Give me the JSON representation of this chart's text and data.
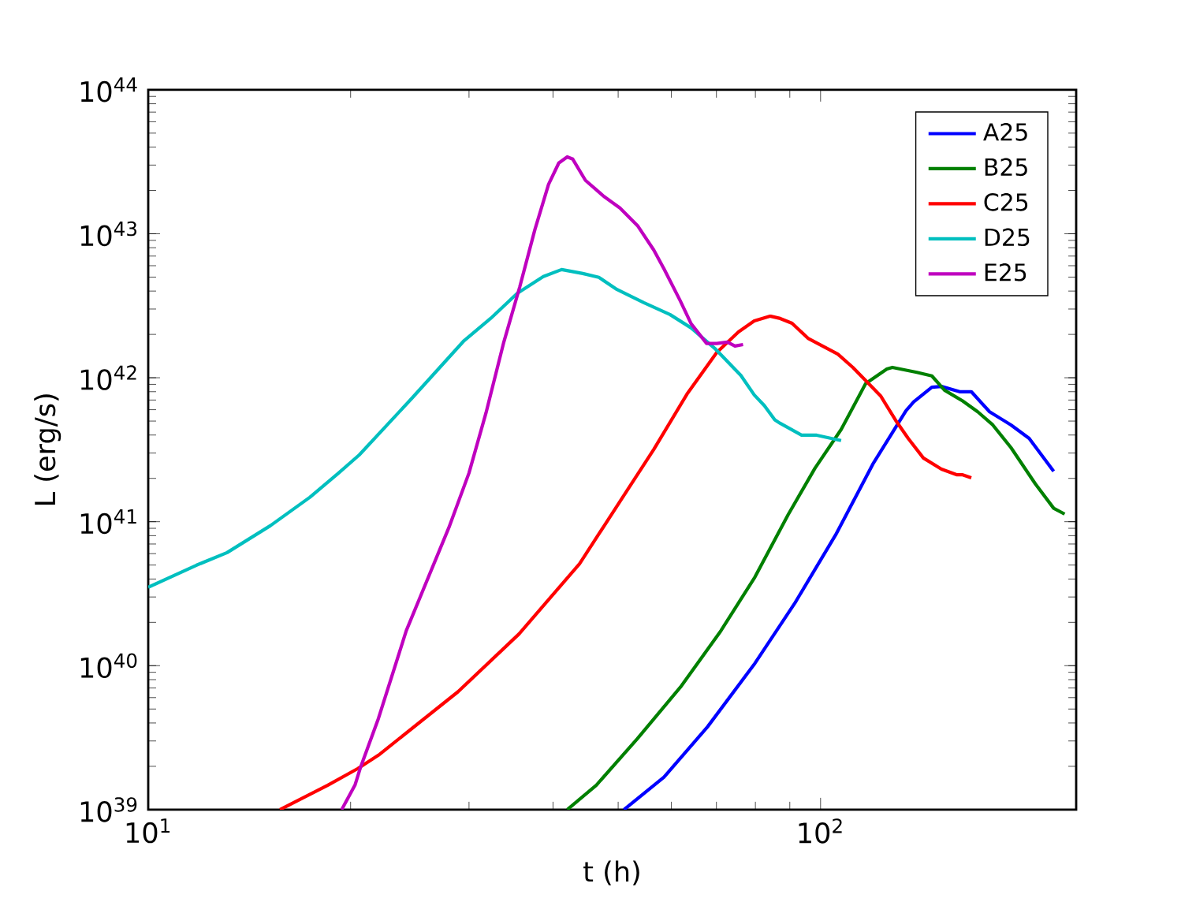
{
  "chart_data": {
    "type": "line",
    "xlabel": "t (h)",
    "ylabel": "L (erg/s)",
    "log": "xy",
    "legend": "top right",
    "grid": false,
    "xlim": [
      10,
      240
    ],
    "ylim": [
      1e+39,
      1e+44
    ],
    "xticks": [
      {
        "value": 10,
        "label": "10$^{1}$"
      },
      {
        "value": 100,
        "label": "10$^{2}$"
      }
    ],
    "yticks": [
      {
        "value": 1e+39,
        "label": "10$^{39}$"
      },
      {
        "value": 1e+40,
        "label": "10$^{40}$"
      },
      {
        "value": 1e+41,
        "label": "10$^{41}$"
      },
      {
        "value": 1e+42,
        "label": "10$^{42}$"
      },
      {
        "value": 1e+43,
        "label": "10$^{43}$"
      },
      {
        "value": 1e+44,
        "label": "10$^{44}$"
      }
    ],
    "series": [
      {
        "name": "A25",
        "color": "#0000ff",
        "x": [
          51.0,
          58.5,
          67.9,
          79.9,
          91.7,
          105.3,
          119.6,
          134.0,
          137.6,
          146.4,
          151.3,
          161.0,
          167.6,
          178.4,
          192.0,
          204.3,
          222.2
        ],
        "values": [
          1e+39,
          1.68e+39,
          3.76e+39,
          1.04e+40,
          2.75e+40,
          8.1e+40,
          2.51e+41,
          5.9e+41,
          6.8e+41,
          8.6e+41,
          8.7e+41,
          8e+41,
          8e+41,
          5.8e+41,
          4.7e+41,
          3.79e+41,
          2.24e+41
        ]
      },
      {
        "name": "B25",
        "color": "#008000",
        "x": [
          42.0,
          46.4,
          53.4,
          61.9,
          71.1,
          79.9,
          89.5,
          98.1,
          107.3,
          116.7,
          125.5,
          127.9,
          139.1,
          146.4,
          152.9,
          162.7,
          171.3,
          180.4,
          192.0,
          208.7,
          222.2,
          230.7
        ],
        "values": [
          1e+39,
          1.48e+39,
          3.11e+39,
          7.1e+39,
          1.75e+40,
          4.13e+40,
          1.12e+41,
          2.35e+41,
          4.37e+41,
          9.1e+41,
          1.15e+42,
          1.18e+42,
          1.09e+42,
          1.03e+42,
          8.2e+41,
          6.9e+41,
          5.8e+41,
          4.7e+41,
          3.27e+41,
          1.83e+41,
          1.24e+41,
          1.13e+41
        ]
      },
      {
        "name": "C25",
        "color": "#ff0000",
        "x": [
          15.7,
          18.5,
          20.5,
          22.0,
          28.9,
          35.6,
          43.8,
          50.3,
          56.5,
          63.3,
          70.1,
          75.5,
          79.7,
          84.1,
          87.1,
          90.7,
          95.8,
          106.1,
          111.7,
          122.8,
          129.3,
          135.0,
          142.2,
          151.3,
          159.3,
          162.4,
          167.6
        ],
        "values": [
          1e+39,
          1.48e+39,
          1.93e+39,
          2.39e+39,
          6.6e+39,
          1.66e+40,
          5.1e+40,
          1.38e+41,
          3.18e+41,
          7.7e+41,
          1.5e+42,
          2.08e+42,
          2.48e+42,
          2.68e+42,
          2.58e+42,
          2.39e+42,
          1.88e+42,
          1.46e+42,
          1.18e+42,
          7.5e+41,
          5.07e+41,
          3.79e+41,
          2.77e+41,
          2.32e+41,
          2.12e+41,
          2.12e+41,
          2.02e+41
        ]
      },
      {
        "name": "D25",
        "color": "#00bfbf",
        "x": [
          10,
          11.8,
          13.1,
          15.2,
          17.4,
          19.2,
          20.6,
          24.6,
          29.5,
          32.3,
          35.4,
          38.7,
          41.2,
          44.3,
          46.8,
          49.8,
          54.6,
          59.7,
          64.2,
          69.6,
          76.1,
          79.7,
          82.5,
          85.5,
          87.1,
          93.7,
          98.7,
          107.3
        ],
        "values": [
          3.5e+40,
          4.99e+40,
          6.1e+40,
          9.4e+40,
          1.48e+41,
          2.18e+41,
          2.91e+41,
          7.1e+41,
          1.81e+42,
          2.58e+42,
          3.86e+42,
          5.04e+42,
          5.64e+42,
          5.3e+42,
          4.98e+42,
          4.1e+42,
          3.32e+42,
          2.75e+42,
          2.22e+42,
          1.6e+42,
          1.04e+42,
          7.6e+41,
          6.4e+41,
          5.1e+41,
          4.82e+41,
          3.99e+41,
          3.99e+41,
          3.66e+41
        ]
      },
      {
        "name": "E25",
        "color": "#bf00bf",
        "x": [
          19.4,
          20.3,
          20.7,
          22.0,
          24.2,
          28.0,
          30.0,
          31.8,
          33.8,
          35.7,
          37.6,
          39.4,
          40.8,
          42.0,
          42.8,
          44.7,
          47.6,
          50.3,
          53.5,
          56.5,
          58.5,
          61.8,
          64.2,
          67.7,
          70.1,
          72.7,
          74.6,
          76.7
        ],
        "values": [
          1e+39,
          1.48e+39,
          1.98e+39,
          4.3e+39,
          1.75e+40,
          9.1e+40,
          2.18e+41,
          5.7e+41,
          1.77e+42,
          4.28e+42,
          1.07e+43,
          2.2e+43,
          3.1e+43,
          3.42e+43,
          3.3e+43,
          2.35e+43,
          1.82e+43,
          1.51e+43,
          1.13e+43,
          7.7e+42,
          5.7e+42,
          3.45e+42,
          2.37e+42,
          1.73e+42,
          1.73e+42,
          1.77e+42,
          1.66e+42,
          1.7e+42
        ]
      }
    ]
  }
}
